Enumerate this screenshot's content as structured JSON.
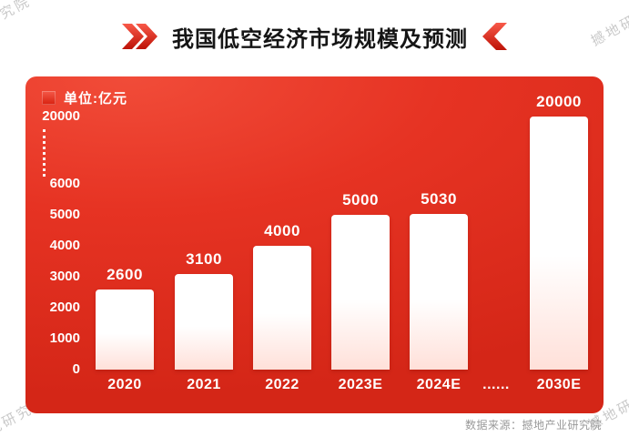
{
  "watermark": "撼地研究院",
  "header": {
    "title": "我国低空经济市场规模及预测"
  },
  "chart_data": {
    "type": "bar",
    "title": "我国低空经济市场规模及预测",
    "unit_label": "单位:亿元",
    "categories": [
      "2020",
      "2021",
      "2022",
      "2023E",
      "2024E",
      "......",
      "2030E"
    ],
    "values": [
      2600,
      3100,
      4000,
      5000,
      5030,
      null,
      20000
    ],
    "y_ticks": [
      0,
      1000,
      2000,
      3000,
      4000,
      5000,
      6000,
      20000
    ],
    "axis_break_between": [
      6000,
      20000
    ],
    "ylim": [
      0,
      20000
    ],
    "grid": false,
    "legend_position": "top-left",
    "source": "数据来源：撼地产业研究院",
    "colors": {
      "panel_red": "#e23122",
      "bar_fill": "#ffffff",
      "label_text": "#ffffff",
      "title_text": "#151515",
      "accent_red": "#d6180b"
    }
  }
}
